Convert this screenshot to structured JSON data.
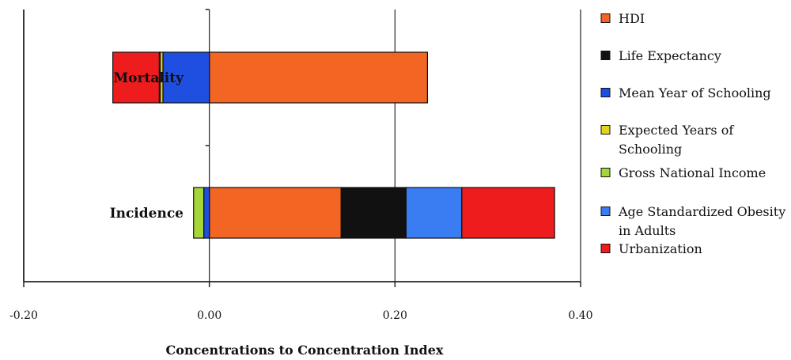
{
  "chart_data": {
    "type": "bar",
    "orientation": "horizontal",
    "stacked": true,
    "diverging": true,
    "categories": [
      "Mortality",
      "Incidence"
    ],
    "series": [
      {
        "name": "HDI",
        "color": "#f26522",
        "values": [
          0.235,
          0.142
        ]
      },
      {
        "name": "Life Expectancy",
        "color": "#111111",
        "values": [
          0.0,
          0.07
        ]
      },
      {
        "name": "Mean Year of Schooling",
        "color": "#1f4fe0",
        "values": [
          -0.05,
          -0.006
        ]
      },
      {
        "name": "Expected Years of Schooling",
        "color": "#e6d21a",
        "values": [
          -0.003,
          0.0
        ]
      },
      {
        "name": "Gross National Income",
        "color": "#a6d63a",
        "values": [
          -0.001,
          -0.011
        ]
      },
      {
        "name": "Age Standardized Obesity in Adults",
        "color": "#3a7cf2",
        "values": [
          0.0,
          0.06
        ]
      },
      {
        "name": "Urbanization",
        "color": "#ee1c1c",
        "values": [
          -0.05,
          0.1
        ]
      }
    ],
    "xlim": [
      -0.2,
      0.4
    ],
    "xticks": [
      "-0.20",
      "0.00",
      "0.20",
      "0.40"
    ],
    "xlabel": "Concentrations to Concentration Index",
    "ylabel": "",
    "grid": "vertical",
    "legend_position": "right"
  }
}
